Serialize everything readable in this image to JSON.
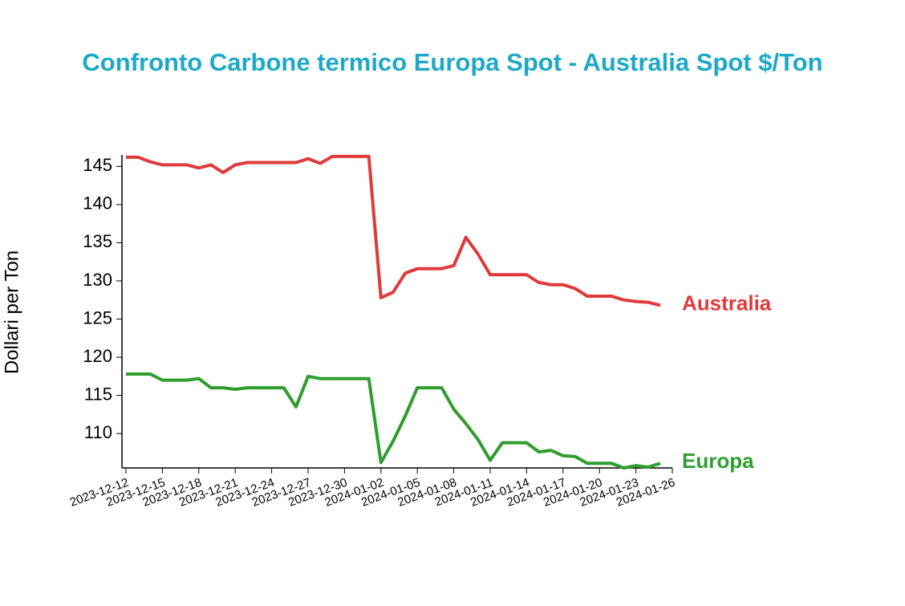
{
  "chart_data": {
    "type": "line",
    "title": "Confronto Carbone termico Europa Spot - Australia Spot $/Ton",
    "y_label": "Dollari per Ton",
    "x": [
      "2023-12-12",
      "2023-12-13",
      "2023-12-14",
      "2023-12-15",
      "2023-12-16",
      "2023-12-17",
      "2023-12-18",
      "2023-12-19",
      "2023-12-20",
      "2023-12-21",
      "2023-12-22",
      "2023-12-23",
      "2023-12-24",
      "2023-12-25",
      "2023-12-26",
      "2023-12-27",
      "2023-12-28",
      "2023-12-29",
      "2023-12-30",
      "2023-12-31",
      "2024-01-01",
      "2024-01-02",
      "2024-01-03",
      "2024-01-04",
      "2024-01-05",
      "2024-01-06",
      "2024-01-07",
      "2024-01-08",
      "2024-01-09",
      "2024-01-10",
      "2024-01-11",
      "2024-01-12",
      "2024-01-13",
      "2024-01-14",
      "2024-01-15",
      "2024-01-16",
      "2024-01-17",
      "2024-01-18",
      "2024-01-19",
      "2024-01-20",
      "2024-01-21",
      "2024-01-22",
      "2024-01-23",
      "2024-01-24",
      "2024-01-25"
    ],
    "xlim": [
      "2023-12-12",
      "2024-01-26"
    ],
    "xticks": [
      "2023-12-12",
      "2023-12-15",
      "2023-12-18",
      "2023-12-21",
      "2023-12-24",
      "2023-12-27",
      "2023-12-30",
      "2024-01-02",
      "2024-01-05",
      "2024-01-08",
      "2024-01-11",
      "2024-01-14",
      "2024-01-17",
      "2024-01-20",
      "2024-01-23",
      "2024-01-26"
    ],
    "ylim": [
      105.5,
      146.5
    ],
    "yticks": [
      110,
      115,
      120,
      125,
      130,
      135,
      140,
      145
    ],
    "series": [
      {
        "name": "Australia",
        "color": "#e03a3a",
        "values": [
          146.2,
          146.2,
          145.6,
          145.2,
          145.2,
          145.2,
          144.8,
          145.2,
          144.2,
          145.2,
          145.5,
          145.5,
          145.5,
          145.5,
          145.5,
          146,
          145.4,
          146.3,
          146.3,
          146.3,
          146.3,
          127.8,
          128.5,
          131,
          131.6,
          131.6,
          131.6,
          132,
          135.7,
          133.5,
          130.8,
          130.8,
          130.8,
          130.8,
          129.8,
          129.5,
          129.5,
          129,
          128,
          128,
          128,
          127.5,
          127.3,
          127.2,
          126.8
        ]
      },
      {
        "name": "Europa",
        "color": "#2e9e2e",
        "values": [
          117.8,
          117.8,
          117.8,
          117,
          117,
          117,
          117.2,
          116,
          116,
          115.8,
          116,
          116,
          116,
          116,
          113.5,
          117.5,
          117.2,
          117.2,
          117.2,
          117.2,
          117.2,
          106.2,
          109,
          112.3,
          116,
          116,
          116,
          113.2,
          111.3,
          109.2,
          106.5,
          108.8,
          108.8,
          108.8,
          107.6,
          107.8,
          107.1,
          107,
          106.1,
          106.1,
          106.1,
          105.5,
          105.8,
          105.6,
          106.1
        ]
      }
    ]
  }
}
